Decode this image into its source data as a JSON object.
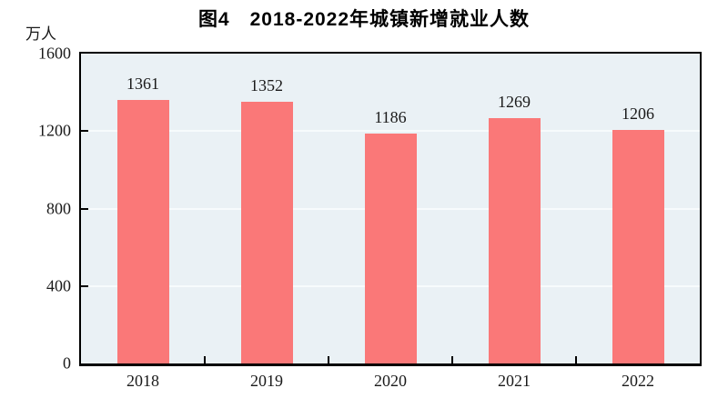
{
  "title": "图4　2018-2022年城镇新增就业人数",
  "y_unit": "万人",
  "chart_data": {
    "type": "bar",
    "title": "图4　2018-2022年城镇新增就业人数",
    "categories": [
      "2018",
      "2019",
      "2020",
      "2021",
      "2022"
    ],
    "values": [
      1361,
      1352,
      1186,
      1269,
      1206
    ],
    "xlabel": "",
    "ylabel": "万人",
    "ylim": [
      0,
      1600
    ],
    "yticks": [
      0,
      400,
      800,
      1200,
      1600
    ],
    "grid": true,
    "legend": false,
    "bar_color": "#FA7878",
    "plot_bg_color": "#EAF1F5",
    "grid_color": "#F7FBFC",
    "axis_color": "#000000",
    "text_color": "#1a1a1a"
  }
}
